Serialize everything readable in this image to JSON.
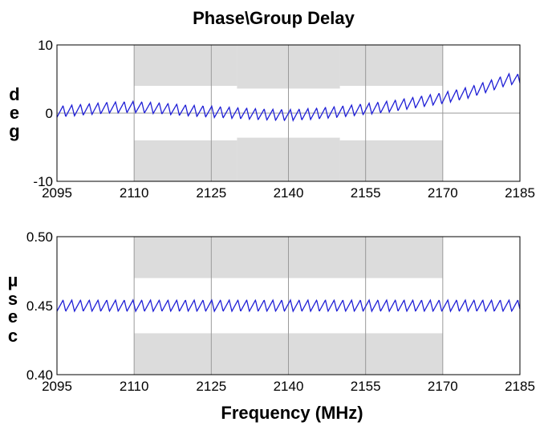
{
  "title": "Phase\\Group Delay",
  "chart_data": [
    {
      "type": "line",
      "name": "phase",
      "ylabel": "deg",
      "xlabel": "",
      "xlim": [
        2095,
        2185
      ],
      "ylim": [
        -10,
        10
      ],
      "x_ticks": [
        "2095",
        "2110",
        "2125",
        "2140",
        "2155",
        "2170",
        "2185"
      ],
      "y_ticks": [
        "10",
        "0",
        "-10"
      ],
      "zero_line": 0,
      "grid_x": [
        2110,
        2125,
        2140,
        2155,
        2170
      ],
      "mask": [
        {
          "x": [
            2110,
            2130
          ],
          "upper": 4.0,
          "lower": -4.0
        },
        {
          "x": [
            2130,
            2150
          ],
          "upper": 3.6,
          "lower": -3.6
        },
        {
          "x": [
            2150,
            2170
          ],
          "upper": 4.0,
          "lower": -4.0
        }
      ],
      "series_color": "#1f1fd6",
      "series": {
        "x": [
          2095,
          2100,
          2105,
          2110,
          2115,
          2120,
          2125,
          2130,
          2135,
          2140,
          2145,
          2150,
          2155,
          2160,
          2165,
          2170,
          2175,
          2180,
          2183,
          2185
        ],
        "y": [
          0.2,
          0.5,
          0.8,
          0.9,
          0.7,
          0.4,
          0.2,
          0.0,
          -0.2,
          -0.3,
          -0.1,
          0.2,
          0.6,
          1.0,
          1.6,
          2.2,
          3.0,
          4.2,
          5.0,
          4.9
        ],
        "ripple_period": 1.7,
        "ripple_amplitude": 0.9
      }
    },
    {
      "type": "line",
      "name": "group-delay",
      "ylabel": "µsec",
      "xlabel": "Frequency (MHz)",
      "xlim": [
        2095,
        2185
      ],
      "ylim": [
        0.4,
        0.5
      ],
      "x_ticks": [
        "2095",
        "2110",
        "2125",
        "2140",
        "2155",
        "2170",
        "2185"
      ],
      "y_ticks": [
        "0.50",
        "0.45",
        "0.40"
      ],
      "grid_x": [
        2110,
        2125,
        2140,
        2155,
        2170
      ],
      "mask": [
        {
          "x": [
            2110,
            2170
          ],
          "upper": 0.47,
          "lower": 0.43
        }
      ],
      "series_color": "#1f1fd6",
      "series": {
        "x": [
          2095,
          2185
        ],
        "y": [
          0.45,
          0.45
        ],
        "ripple_period": 1.7,
        "ripple_amplitude": 0.0045
      }
    }
  ]
}
